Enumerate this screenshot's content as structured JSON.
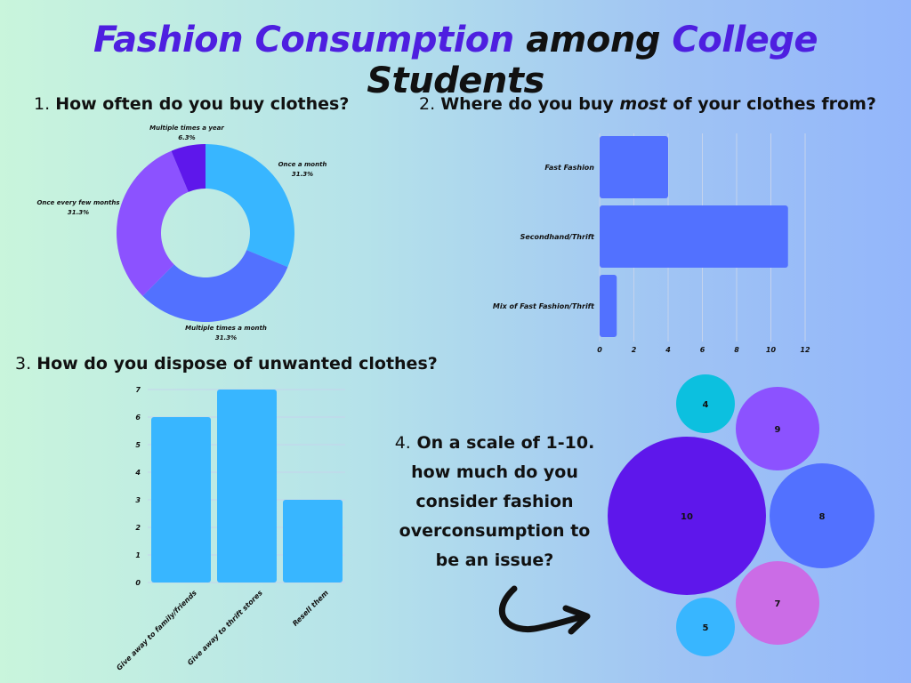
{
  "title": {
    "part1": "Fashion Consumption",
    "part2": "among",
    "part3": "College",
    "part4": "Students"
  },
  "colors": {
    "title_accent": "#4e1fe0",
    "cyan": "#38b6ff",
    "blue": "#5271ff",
    "purple": "#8c52ff",
    "violet": "#5e17eb",
    "teal": "#0cc0df",
    "pink": "#cb6ce6"
  },
  "questions": {
    "q1": {
      "num": "1.",
      "text": "How often do you buy clothes?"
    },
    "q2": {
      "num": "2.",
      "text_before": "Where do you buy ",
      "text_em": "most",
      "text_after": " of your clothes from?"
    },
    "q3": {
      "num": "3.",
      "text": "How do you dispose of unwanted clothes?"
    },
    "q4": {
      "num": "4.",
      "line1": "On a scale of 1-10.",
      "line2": "how much do you",
      "line3": "consider fashion",
      "line4": "overconsumption to",
      "line5": "be an issue?"
    }
  },
  "chart_data": [
    {
      "type": "pie",
      "donut": true,
      "slices": [
        {
          "label": "Once a month",
          "pct_label": "31.3%",
          "value": 31.3,
          "color": "#38b6ff"
        },
        {
          "label": "Multiple times a month",
          "pct_label": "31.3%",
          "value": 31.3,
          "color": "#5271ff"
        },
        {
          "label": "Once every few months",
          "pct_label": "31.3%",
          "value": 31.3,
          "color": "#8c52ff"
        },
        {
          "label": "Multiple times a year",
          "pct_label": "6.3%",
          "value": 6.3,
          "color": "#5e17eb"
        }
      ]
    },
    {
      "type": "bar",
      "orientation": "horizontal",
      "categories": [
        "Fast Fashion",
        "Secondhand/Thrift",
        "Mix of Fast Fashion/Thrift"
      ],
      "values": [
        4,
        11,
        1
      ],
      "xlim": [
        0,
        12
      ],
      "xticks": [
        "0",
        "2",
        "4",
        "6",
        "8",
        "10",
        "12"
      ],
      "color": "#5271ff",
      "grid": true
    },
    {
      "type": "bar",
      "orientation": "vertical",
      "categories": [
        "Give away to family/friends",
        "Give away to thrift stores",
        "Resell them"
      ],
      "values": [
        6,
        7,
        3
      ],
      "ylim": [
        0,
        7
      ],
      "yticks": [
        "0",
        "1",
        "2",
        "3",
        "4",
        "5",
        "6",
        "7"
      ],
      "color": "#38b6ff",
      "grid": true
    },
    {
      "type": "bubble",
      "bubbles": [
        {
          "label": "10",
          "value": 10,
          "color": "#5e17eb"
        },
        {
          "label": "9",
          "value": 9,
          "color": "#8c52ff"
        },
        {
          "label": "8",
          "value": 8,
          "color": "#5271ff"
        },
        {
          "label": "7",
          "value": 7,
          "color": "#cb6ce6"
        },
        {
          "label": "5",
          "value": 5,
          "color": "#38b6ff"
        },
        {
          "label": "4",
          "value": 4,
          "color": "#0cc0df"
        }
      ]
    }
  ]
}
